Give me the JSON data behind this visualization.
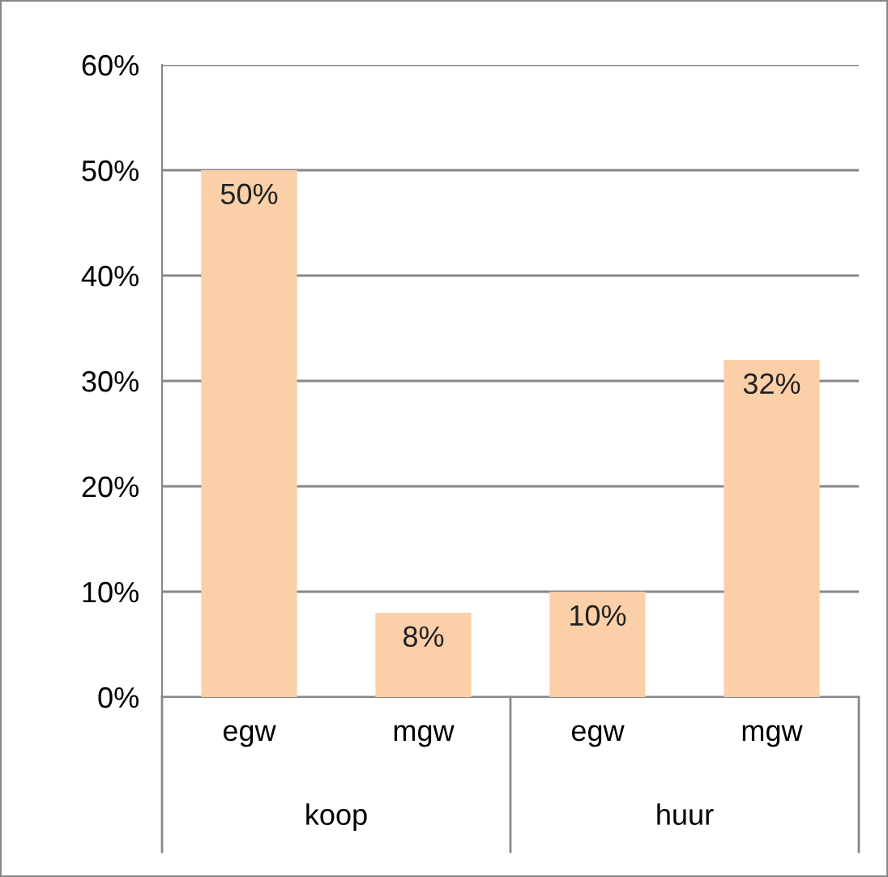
{
  "chart_data": {
    "type": "bar",
    "categories": [
      "egw",
      "mgw",
      "egw",
      "mgw"
    ],
    "values": [
      50,
      8,
      10,
      32
    ],
    "color": "#fbcfa8",
    "value_labels": [
      "50%",
      "8%",
      "10%",
      "32%"
    ],
    "ylim": [
      0,
      60
    ],
    "yticks": [
      {
        "value": 0,
        "label": "0%"
      },
      {
        "value": 10,
        "label": "10%"
      },
      {
        "value": 20,
        "label": "20%"
      },
      {
        "value": 30,
        "label": "30%"
      },
      {
        "value": 40,
        "label": "40%"
      },
      {
        "value": 50,
        "label": "50%"
      },
      {
        "value": 60,
        "label": "60%"
      }
    ],
    "grid": "y",
    "annotations": [
      "koop",
      "huur"
    ]
  }
}
